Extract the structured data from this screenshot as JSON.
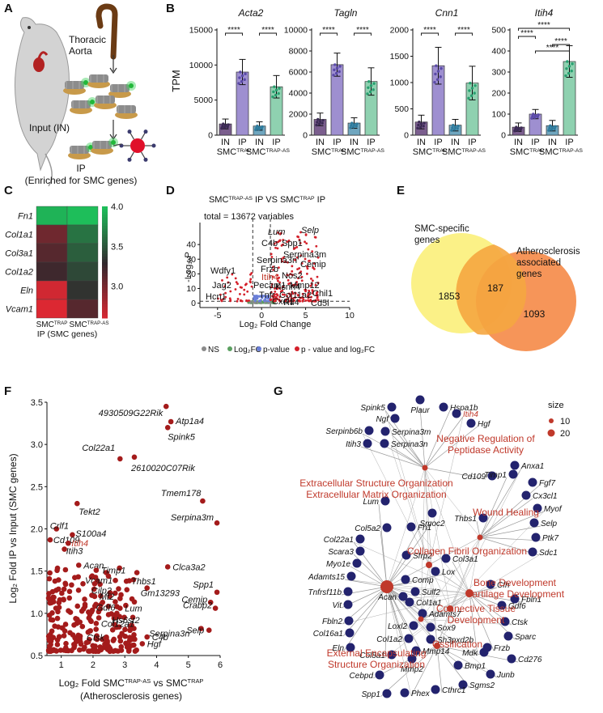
{
  "panels": {
    "A": {
      "letter": "A",
      "labels": {
        "aorta": "Thoracic\nAorta",
        "input": "Input (IN)",
        "ip": "IP",
        "enriched": "(Enriched for SMC genes)"
      }
    },
    "B": {
      "letter": "B",
      "ylabel": "TPM",
      "sig": "****",
      "xgroups": {
        "in": "IN",
        "ip": "IP",
        "trap": "SMC",
        "trap_sup": "TRAP",
        "trapas_sup": "TRAP-AS"
      }
    },
    "C": {
      "letter": "C",
      "xlabels": [
        "SMC",
        "SMC"
      ],
      "xsup": [
        "TRAP",
        "TRAP-AS"
      ],
      "caption": "IP (SMC genes)"
    },
    "D": {
      "letter": "D",
      "title_pre": "SMC",
      "title_sup1": "TRAP-AS",
      "title_mid": " IP VS SMC",
      "title_sup2": "TRAP",
      "title_post": " IP",
      "total": "total = 13672 variables",
      "xlabel": "Log₂ Fold Change",
      "ylabel": "-Log₁₀P",
      "legend": [
        "NS",
        "Log₂FC",
        "p-value",
        "p - value and log₂FC"
      ],
      "genes": [
        {
          "name": "Lum",
          "italic": true
        },
        {
          "name": "Selp",
          "italic": true
        },
        {
          "name": "C4b"
        },
        {
          "name": "Spp1"
        },
        {
          "name": "Serpina3m"
        },
        {
          "name": "Serpina3n"
        },
        {
          "name": "Cemip"
        },
        {
          "name": "Frzb"
        },
        {
          "name": "Wdfy1"
        },
        {
          "name": "Itih4",
          "red": true
        },
        {
          "name": "Nos2"
        },
        {
          "name": "Mmp12"
        },
        {
          "name": "Kcnn4"
        },
        {
          "name": "Chil1"
        },
        {
          "name": "Jag2"
        },
        {
          "name": "Pecam1"
        },
        {
          "name": "Col11a2"
        },
        {
          "name": "Cd5l"
        },
        {
          "name": "Hcn1"
        },
        {
          "name": "Tnfr"
        },
        {
          "name": "Cxcl1"
        },
        {
          "name": "Rtl4"
        }
      ]
    },
    "E": {
      "letter": "E",
      "set1": "SMC-specific\ngenes",
      "set2": "Atherosclerosis\nassociated\ngenes",
      "only1": "1853",
      "both": "187",
      "only2": "1093"
    },
    "F": {
      "letter": "F",
      "ylabel": "Log₂ Fold IP vs Input (SMC genes)",
      "xlabel_pre": "Log₂ Fold SMC",
      "xlabel_sup1": "TRAP-AS",
      "xlabel_mid": " vs SMC",
      "xlabel_sup2": "TRAP",
      "xlabel2": "(Atherosclerosis genes)"
    },
    "G": {
      "letter": "G",
      "size_title": "size",
      "size_vals": [
        "10",
        "20"
      ],
      "terms": [
        "Negative Regulation of\nPeptidase Activity",
        "Extracellular Structure Organization\nExtracellular Matrix Organization",
        "Wound Healing",
        "Collagen Fibril Organization",
        "Bone Development\nCartilage Development",
        "Connective Tissue\nDevelopment",
        "Ossification",
        "External Encapsulating\nStructure Organization"
      ]
    }
  },
  "chart_data": [
    {
      "type": "bar",
      "panel": "B",
      "title": "Acta2",
      "ylim": [
        0,
        15000
      ],
      "yticks": [
        0,
        5000,
        10000,
        15000
      ],
      "categories": [
        "IN TRAP",
        "IP TRAP",
        "IN TRAP-AS",
        "IP TRAP-AS"
      ],
      "values": [
        1600,
        9000,
        1300,
        6900
      ],
      "errors": [
        700,
        1800,
        600,
        1600
      ],
      "brackets": [
        [
          0,
          1
        ],
        [
          2,
          3
        ]
      ]
    },
    {
      "type": "bar",
      "panel": "B",
      "title": "Tagln",
      "ylim": [
        0,
        10000
      ],
      "yticks": [
        0,
        2000,
        4000,
        6000,
        8000,
        10000
      ],
      "categories": [
        "IN TRAP",
        "IP TRAP",
        "IN TRAP-AS",
        "IP TRAP-AS"
      ],
      "values": [
        1500,
        6700,
        1150,
        5100
      ],
      "errors": [
        600,
        1100,
        500,
        1300
      ],
      "brackets": [
        [
          0,
          1
        ],
        [
          2,
          3
        ]
      ]
    },
    {
      "type": "bar",
      "panel": "B",
      "title": "Cnn1",
      "ylim": [
        0,
        2000
      ],
      "yticks": [
        0,
        500,
        1000,
        1500,
        2000
      ],
      "categories": [
        "IN TRAP",
        "IP TRAP",
        "IN TRAP-AS",
        "IP TRAP-AS"
      ],
      "values": [
        250,
        1320,
        190,
        990
      ],
      "errors": [
        130,
        350,
        110,
        320
      ],
      "brackets": [
        [
          0,
          1
        ],
        [
          2,
          3
        ]
      ]
    },
    {
      "type": "bar",
      "panel": "B",
      "title": "Itih4",
      "ylim": [
        0,
        500
      ],
      "yticks": [
        0,
        100,
        200,
        300,
        400,
        500
      ],
      "categories": [
        "IN TRAP",
        "IP TRAP",
        "IN TRAP-AS",
        "IP TRAP-AS"
      ],
      "values": [
        38,
        100,
        45,
        350
      ],
      "errors": [
        20,
        22,
        25,
        75
      ],
      "brackets": [
        [
          0,
          1
        ],
        [
          1,
          3
        ],
        [
          2,
          3
        ],
        [
          0,
          3
        ]
      ]
    },
    {
      "type": "heatmap",
      "panel": "C",
      "rows": [
        "Fn1",
        "Col1a1",
        "Col3a1",
        "Col1a2",
        "Eln",
        "Vcam1"
      ],
      "cols": [
        "TRAP",
        "TRAP-AS"
      ],
      "values": [
        [
          3.95,
          4.1
        ],
        [
          3.05,
          3.65
        ],
        [
          3.15,
          3.55
        ],
        [
          3.25,
          3.45
        ],
        [
          2.65,
          3.35
        ],
        [
          2.25,
          3.15
        ]
      ],
      "scale": [
        2.6,
        4.0
      ],
      "ticks": [
        3.0,
        3.5,
        4.0
      ]
    },
    {
      "type": "scatter",
      "panel": "D",
      "xlim": [
        -7,
        10
      ],
      "ylim": [
        -3,
        55
      ],
      "xticks": [
        -5,
        0,
        5,
        10
      ],
      "yticks": [
        0,
        10,
        20,
        30,
        40
      ]
    },
    {
      "type": "scatter",
      "panel": "F",
      "xlim": [
        0.55,
        6.0
      ],
      "ylim": [
        0.5,
        3.5
      ],
      "xticks": [
        1,
        2,
        3,
        4,
        5,
        6
      ],
      "yticks": [
        0.5,
        1.0,
        1.5,
        2.0,
        2.5,
        3.0,
        3.5
      ],
      "points": [
        {
          "label": "4930509G22Rik",
          "x": 4.3,
          "y": 3.45
        },
        {
          "label": "Atp1a4",
          "x": 4.45,
          "y": 3.27
        },
        {
          "label": "Spink5",
          "x": 4.35,
          "y": 3.2
        },
        {
          "label": "Col22a1",
          "x": 2.85,
          "y": 2.83
        },
        {
          "label": "2610020C07Rik",
          "x": 3.3,
          "y": 2.85
        },
        {
          "label": "Tmem178",
          "x": 5.45,
          "y": 2.33
        },
        {
          "label": "Serpina3m",
          "x": 5.9,
          "y": 2.07
        },
        {
          "label": "Tekt2",
          "x": 1.5,
          "y": 2.3
        },
        {
          "label": "Crlf1",
          "x": 0.85,
          "y": 2.0
        },
        {
          "label": "S100a4",
          "x": 1.35,
          "y": 1.93
        },
        {
          "label": "Cd109",
          "x": 0.65,
          "y": 1.87
        },
        {
          "label": "Itih4",
          "x": 1.22,
          "y": 1.83,
          "red": true
        },
        {
          "label": "Itih3",
          "x": 1.1,
          "y": 1.76
        },
        {
          "label": "Acan",
          "x": 1.55,
          "y": 1.57
        },
        {
          "label": "Timp1",
          "x": 2.1,
          "y": 1.51
        },
        {
          "label": "Vcam1",
          "x": 1.95,
          "y": 1.43
        },
        {
          "label": "Cilp2",
          "x": 2.05,
          "y": 1.35
        },
        {
          "label": "Clca3a2",
          "x": 4.35,
          "y": 1.55
        },
        {
          "label": "Thbs1",
          "x": 3.05,
          "y": 1.38
        },
        {
          "label": "Gm13293",
          "x": 3.7,
          "y": 1.3
        },
        {
          "label": "Mt2",
          "x": 2.05,
          "y": 1.2
        },
        {
          "label": "Gdf6",
          "x": 2.3,
          "y": 1.13
        },
        {
          "label": "Lum",
          "x": 2.85,
          "y": 1.06
        },
        {
          "label": "Hs6st2",
          "x": 2.75,
          "y": 1.0
        },
        {
          "label": "Spp1",
          "x": 5.9,
          "y": 1.25
        },
        {
          "label": "Cemip",
          "x": 5.7,
          "y": 1.13
        },
        {
          "label": "Crabp2",
          "x": 5.85,
          "y": 1.06
        },
        {
          "label": "Col12a1",
          "x": 2.1,
          "y": 0.88
        },
        {
          "label": "Serpina3n",
          "x": 5.4,
          "y": 0.82
        },
        {
          "label": "Selp",
          "x": 5.65,
          "y": 0.8
        },
        {
          "label": "Ctsk",
          "x": 1.9,
          "y": 0.79
        },
        {
          "label": "C4b",
          "x": 3.7,
          "y": 0.72
        },
        {
          "label": "Hgf",
          "x": 3.55,
          "y": 0.64
        }
      ]
    }
  ]
}
